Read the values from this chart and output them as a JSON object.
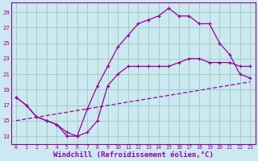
{
  "bg_color": "#cce8f0",
  "line_color": "#990099",
  "grid_color": "#99ccbb",
  "xlabel": "Windchill (Refroidissement éolien,°C)",
  "xlabel_fontsize": 6.5,
  "ylabel_values": [
    13,
    15,
    17,
    19,
    21,
    23,
    25,
    27,
    29
  ],
  "xlim": [
    -0.5,
    23.5
  ],
  "ylim": [
    12.0,
    30.2
  ],
  "xtick_labels": [
    "0",
    "1",
    "2",
    "3",
    "4",
    "5",
    "6",
    "7",
    "8",
    "9",
    "10",
    "11",
    "12",
    "13",
    "14",
    "15",
    "16",
    "17",
    "18",
    "19",
    "20",
    "21",
    "22",
    "23"
  ],
  "series": [
    {
      "x": [
        0,
        1,
        2,
        3,
        4,
        5,
        6,
        7,
        8,
        9,
        10,
        11,
        12,
        13,
        14,
        15,
        16,
        17,
        18,
        19,
        20,
        21,
        22,
        23
      ],
      "y": [
        18,
        17,
        15.5,
        15,
        14.5,
        13.5,
        13,
        16.5,
        19.5,
        22,
        24.5,
        26,
        27.5,
        28,
        28.5,
        29.5,
        28.5,
        28.5,
        27.5,
        27.5,
        25,
        23.5,
        21,
        20.5
      ]
    },
    {
      "x": [
        0,
        1,
        2,
        3,
        4,
        5,
        6,
        7,
        8,
        9,
        10,
        11,
        12,
        13,
        14,
        15,
        16,
        17,
        18,
        19,
        20,
        21,
        22,
        23
      ],
      "y": [
        18,
        17,
        15.5,
        15,
        14.5,
        13,
        13,
        13.5,
        15,
        19.5,
        21,
        22,
        22,
        22,
        22,
        22,
        22.5,
        23,
        23,
        22.5,
        22.5,
        22.5,
        22,
        22
      ]
    },
    {
      "x": [
        0,
        23
      ],
      "y": [
        15,
        20
      ]
    }
  ]
}
